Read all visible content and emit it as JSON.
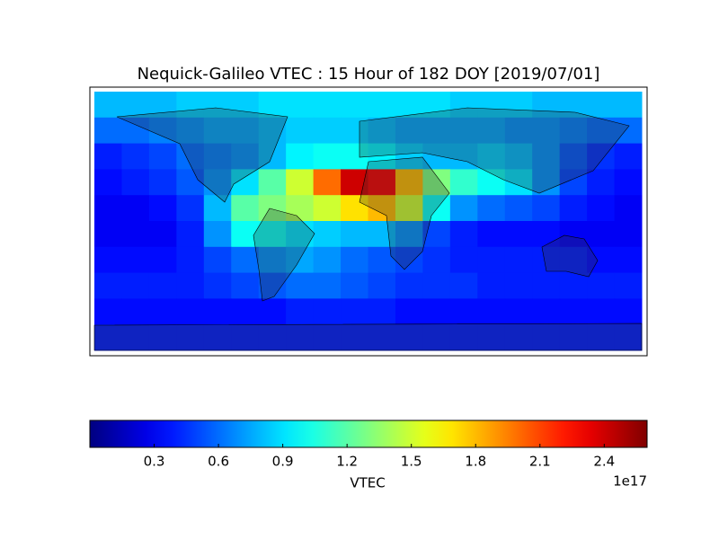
{
  "chart_data": {
    "type": "heatmap",
    "title": "Nequick-Galileo VTEC : 15 Hour of 182 DOY [2019/07/01]",
    "xlim": [
      -180,
      180
    ],
    "ylim": [
      90,
      -90
    ],
    "values": [
      [
        0.8,
        0.8,
        0.8,
        0.85,
        0.85,
        0.85,
        0.9,
        0.9,
        0.9,
        0.9,
        0.9,
        0.9,
        0.9,
        0.85,
        0.85,
        0.85,
        0.8,
        0.8,
        0.8,
        0.8
      ],
      [
        0.6,
        0.6,
        0.65,
        0.7,
        0.75,
        0.75,
        0.8,
        0.85,
        0.85,
        0.85,
        0.8,
        0.75,
        0.75,
        0.75,
        0.75,
        0.7,
        0.7,
        0.65,
        0.6,
        0.6
      ],
      [
        0.4,
        0.45,
        0.5,
        0.6,
        0.65,
        0.7,
        0.8,
        0.95,
        1.0,
        1.0,
        0.95,
        0.85,
        0.8,
        0.8,
        0.85,
        0.8,
        0.7,
        0.55,
        0.45,
        0.4
      ],
      [
        0.35,
        0.4,
        0.45,
        0.55,
        0.7,
        0.9,
        1.2,
        1.5,
        2.0,
        2.4,
        2.3,
        1.8,
        1.3,
        1.1,
        1.0,
        0.9,
        0.7,
        0.5,
        0.4,
        0.35
      ],
      [
        0.3,
        0.3,
        0.35,
        0.45,
        0.8,
        1.2,
        1.3,
        1.4,
        1.5,
        1.7,
        1.8,
        1.5,
        1.0,
        0.7,
        0.6,
        0.55,
        0.5,
        0.4,
        0.35,
        0.3
      ],
      [
        0.3,
        0.3,
        0.3,
        0.4,
        0.7,
        1.0,
        1.0,
        0.9,
        0.85,
        0.8,
        0.8,
        0.7,
        0.5,
        0.4,
        0.35,
        0.35,
        0.35,
        0.3,
        0.3,
        0.3
      ],
      [
        0.35,
        0.35,
        0.35,
        0.4,
        0.5,
        0.6,
        0.7,
        0.75,
        0.7,
        0.6,
        0.55,
        0.5,
        0.45,
        0.4,
        0.4,
        0.4,
        0.4,
        0.4,
        0.35,
        0.35
      ],
      [
        0.4,
        0.4,
        0.4,
        0.4,
        0.45,
        0.5,
        0.55,
        0.6,
        0.6,
        0.55,
        0.5,
        0.45,
        0.45,
        0.45,
        0.4,
        0.4,
        0.4,
        0.4,
        0.4,
        0.4
      ],
      [
        0.35,
        0.35,
        0.35,
        0.35,
        0.35,
        0.35,
        0.35,
        0.4,
        0.4,
        0.4,
        0.4,
        0.35,
        0.35,
        0.35,
        0.35,
        0.35,
        0.35,
        0.35,
        0.35,
        0.35
      ],
      [
        0.4,
        0.4,
        0.4,
        0.4,
        0.4,
        0.4,
        0.4,
        0.4,
        0.4,
        0.4,
        0.4,
        0.4,
        0.4,
        0.4,
        0.4,
        0.4,
        0.4,
        0.4,
        0.4,
        0.4
      ]
    ],
    "colorbar": {
      "label": "VTEC",
      "offset_label": "1e17",
      "lim": [
        0,
        2.6
      ],
      "ticks": [
        0.3,
        0.6,
        0.9,
        1.2,
        1.5,
        1.8,
        2.1,
        2.4
      ]
    }
  }
}
